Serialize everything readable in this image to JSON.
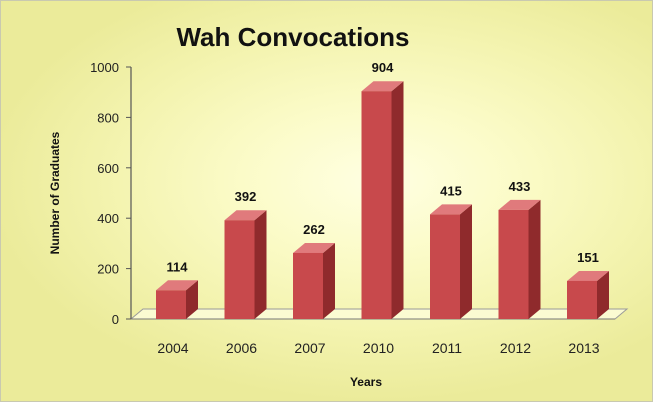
{
  "chart_data": {
    "type": "bar",
    "title": "Wah Convocations",
    "xlabel": "Years",
    "ylabel": "Number of Graduates",
    "categories": [
      "2004",
      "2006",
      "2007",
      "2010",
      "2011",
      "2012",
      "2013"
    ],
    "values": [
      114,
      392,
      262,
      904,
      415,
      433,
      151
    ],
    "data_labels": [
      "114",
      "392",
      "262",
      "904",
      "415",
      "433",
      "151"
    ],
    "ylim": [
      0,
      1000
    ],
    "yticks": [
      "0",
      "200",
      "400",
      "600",
      "800",
      "1000"
    ],
    "grid": false,
    "legend": "none",
    "style": "3d-column",
    "colors": {
      "bar_front": "#c8494c",
      "bar_side": "#8f2a2c",
      "bar_top": "#e07a7c",
      "background": "#f7f7bf"
    }
  }
}
